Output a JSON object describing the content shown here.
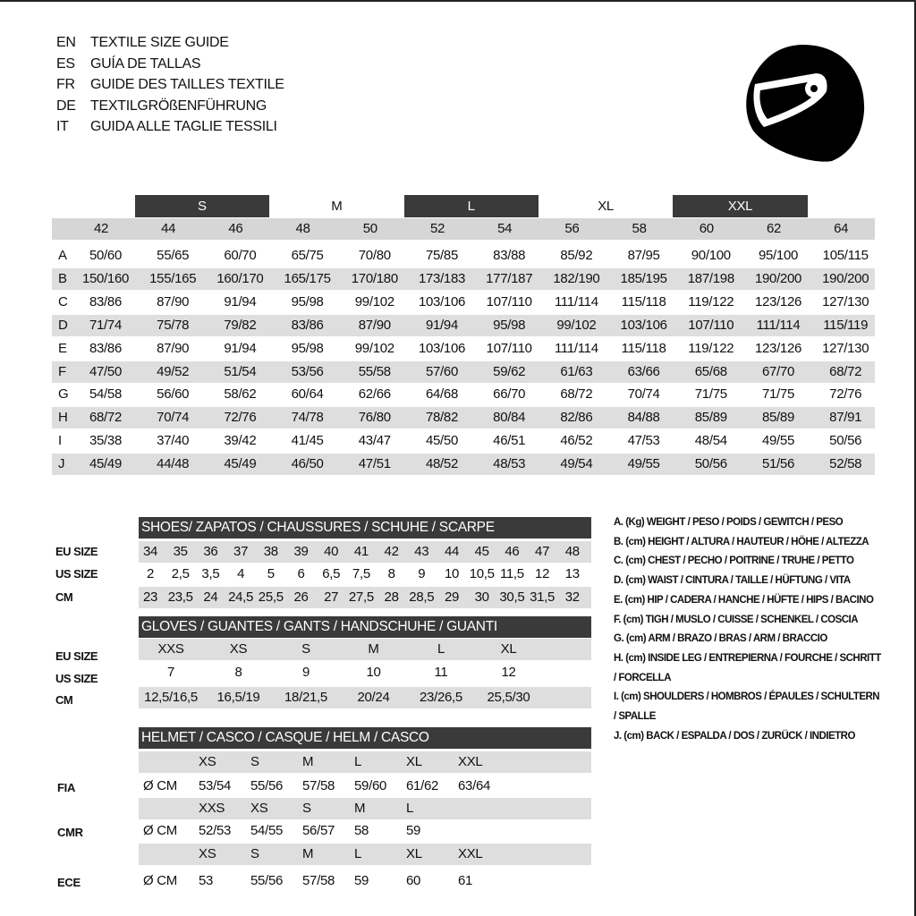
{
  "header": {
    "lines": [
      {
        "code": "EN",
        "text": "TEXTILE SIZE GUIDE"
      },
      {
        "code": "ES",
        "text": "GUÍA DE TALLAS"
      },
      {
        "code": "FR",
        "text": "GUIDE DES TAILLES TEXTILE"
      },
      {
        "code": "DE",
        "text": "TEXTILGRÖßENFÜHRUNG"
      },
      {
        "code": "IT",
        "text": "GUIDA ALLE TAGLIE TESSILI"
      }
    ]
  },
  "textile": {
    "size_groups": [
      "S",
      "M",
      "L",
      "XL",
      "XXL"
    ],
    "columns": [
      "42",
      "44",
      "46",
      "48",
      "50",
      "52",
      "54",
      "56",
      "58",
      "60",
      "62",
      "64"
    ],
    "rows": [
      {
        "label": "A",
        "values": [
          "50/60",
          "55/65",
          "60/70",
          "65/75",
          "70/80",
          "75/85",
          "83/88",
          "85/92",
          "87/95",
          "90/100",
          "95/100",
          "105/115"
        ]
      },
      {
        "label": "B",
        "values": [
          "150/160",
          "155/165",
          "160/170",
          "165/175",
          "170/180",
          "173/183",
          "177/187",
          "182/190",
          "185/195",
          "187/198",
          "190/200",
          "190/200"
        ]
      },
      {
        "label": "C",
        "values": [
          "83/86",
          "87/90",
          "91/94",
          "95/98",
          "99/102",
          "103/106",
          "107/110",
          "111/114",
          "115/118",
          "119/122",
          "123/126",
          "127/130"
        ]
      },
      {
        "label": "D",
        "values": [
          "71/74",
          "75/78",
          "79/82",
          "83/86",
          "87/90",
          "91/94",
          "95/98",
          "99/102",
          "103/106",
          "107/110",
          "111/114",
          "115/119"
        ]
      },
      {
        "label": "E",
        "values": [
          "83/86",
          "87/90",
          "91/94",
          "95/98",
          "99/102",
          "103/106",
          "107/110",
          "111/114",
          "115/118",
          "119/122",
          "123/126",
          "127/130"
        ]
      },
      {
        "label": "F",
        "values": [
          "47/50",
          "49/52",
          "51/54",
          "53/56",
          "55/58",
          "57/60",
          "59/62",
          "61/63",
          "63/66",
          "65/68",
          "67/70",
          "68/72"
        ]
      },
      {
        "label": "G",
        "values": [
          "54/58",
          "56/60",
          "58/62",
          "60/64",
          "62/66",
          "64/68",
          "66/70",
          "68/72",
          "70/74",
          "71/75",
          "71/75",
          "72/76"
        ]
      },
      {
        "label": "H",
        "values": [
          "68/72",
          "70/74",
          "72/76",
          "74/78",
          "76/80",
          "78/82",
          "80/84",
          "82/86",
          "84/88",
          "85/89",
          "85/89",
          "87/91"
        ]
      },
      {
        "label": "I",
        "values": [
          "35/38",
          "37/40",
          "39/42",
          "41/45",
          "43/47",
          "45/50",
          "46/51",
          "46/52",
          "47/53",
          "48/54",
          "49/55",
          "50/56"
        ]
      },
      {
        "label": "J",
        "values": [
          "45/49",
          "44/48",
          "45/49",
          "46/50",
          "47/51",
          "48/52",
          "48/53",
          "49/54",
          "49/55",
          "50/56",
          "51/56",
          "52/58"
        ]
      }
    ]
  },
  "shoes": {
    "title": "SHOES/ ZAPATOS / CHAUSSURES / SCHUHE / SCARPE",
    "rows": [
      {
        "label": "EU SIZE",
        "values": [
          "34",
          "35",
          "36",
          "37",
          "38",
          "39",
          "40",
          "41",
          "42",
          "43",
          "44",
          "45",
          "46",
          "47",
          "48"
        ]
      },
      {
        "label": "US SIZE",
        "values": [
          "2",
          "2,5",
          "3,5",
          "4",
          "5",
          "6",
          "6,5",
          "7,5",
          "8",
          "9",
          "10",
          "10,5",
          "11,5",
          "12",
          "13"
        ]
      },
      {
        "label": "CM",
        "values": [
          "23",
          "23,5",
          "24",
          "24,5",
          "25,5",
          "26",
          "27",
          "27,5",
          "28",
          "28,5",
          "29",
          "30",
          "30,5",
          "31,5",
          "32"
        ]
      }
    ]
  },
  "gloves": {
    "title": "GLOVES / GUANTES / GANTS / HANDSCHUHE / GUANTI",
    "rows": [
      {
        "label": "EU SIZE",
        "values": [
          "XXS",
          "XS",
          "S",
          "M",
          "L",
          "XL"
        ]
      },
      {
        "label": "US SIZE",
        "values": [
          "7",
          "8",
          "9",
          "10",
          "11",
          "12"
        ]
      },
      {
        "label": "CM",
        "values": [
          "12,5/16,5",
          "16,5/19",
          "18/21,5",
          "20/24",
          "23/26,5",
          "25,5/30"
        ]
      }
    ]
  },
  "helmet": {
    "title": "HELMET / CASCO / CASQUE / HELM / CASCO",
    "rows": [
      {
        "label": "FIA",
        "unit": "Ø CM",
        "sizes": [
          "XS",
          "S",
          "M",
          "L",
          "XL",
          "XXL"
        ],
        "values": [
          "53/54",
          "55/56",
          "57/58",
          "59/60",
          "61/62",
          "63/64"
        ]
      },
      {
        "label": "CMR",
        "unit": "Ø CM",
        "sizes": [
          "XXS",
          "XS",
          "S",
          "M",
          "L"
        ],
        "values": [
          "52/53",
          "54/55",
          "56/57",
          "58",
          "59"
        ]
      },
      {
        "label": "ECE",
        "unit": "Ø CM",
        "sizes": [
          "XS",
          "S",
          "M",
          "L",
          "XL",
          "XXL"
        ],
        "values": [
          "53",
          "55/56",
          "57/58",
          "59",
          "60",
          "61"
        ]
      }
    ]
  },
  "legend": [
    "A. (Kg) WEIGHT / PESO / POIDS / GEWITCH / PESO",
    "B. (cm) HEIGHT / ALTURA / HAUTEUR / HÖHE / ALTEZZA",
    "C. (cm) CHEST / PECHO / POITRINE / TRUHE / PETTO",
    "D. (cm) WAIST / CINTURA / TAILLE / HÜFTUNG / VITA",
    "E. (cm) HIP / CADERA / HANCHE / HÜFTE / HIPS / BACINO",
    "F. (cm) TIGH / MUSLO / CUISSE / SCHENKEL / COSCIA",
    "G. (cm) ARM / BRAZO / BRAS / ARM / BRACCIO",
    "H. (cm) INSIDE LEG / ENTREPIERNA / FOURCHE / SCHRITT / FORCELLA",
    "I. (cm) SHOULDERS / HOMBROS / ÉPAULES / SCHULTERN / SPALLE",
    "J. (cm) BACK / ESPALDA / DOS / ZURÜCK / INDIETRO"
  ]
}
